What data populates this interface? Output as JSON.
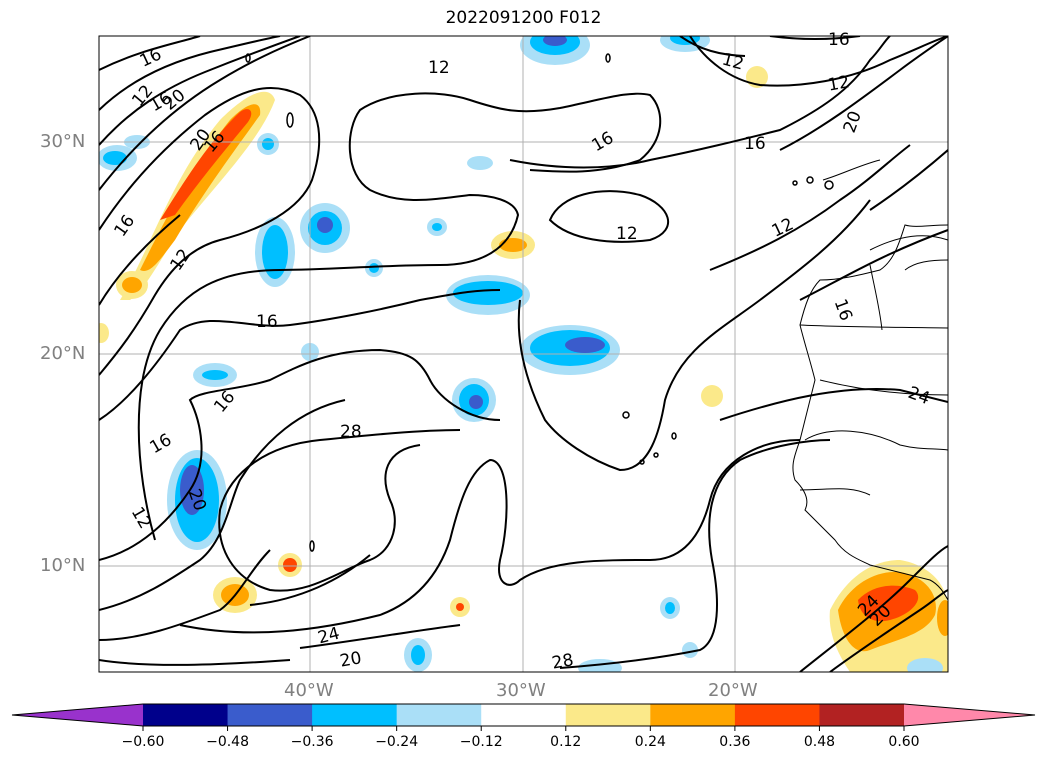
{
  "title": "2022091200 F012",
  "lat_labels": [
    "30°N",
    "20°N",
    "10°N"
  ],
  "lon_labels": [
    "40°W",
    "30°W",
    "20°W"
  ],
  "contour_labels": [
    "12",
    "16",
    "20",
    "24",
    "28"
  ],
  "colorbar": {
    "ticks": [
      "−0.60",
      "−0.48",
      "−0.36",
      "−0.24",
      "−0.12",
      "0.12",
      "0.24",
      "0.36",
      "0.48",
      "0.60"
    ],
    "colors": [
      "#9932cc",
      "#00008b",
      "#3a5ccc",
      "#00bfff",
      "#aadff7",
      "#ffffff",
      "#fbe98a",
      "#ffa500",
      "#ff4500",
      "#b22222",
      "#ff88aa"
    ]
  }
}
